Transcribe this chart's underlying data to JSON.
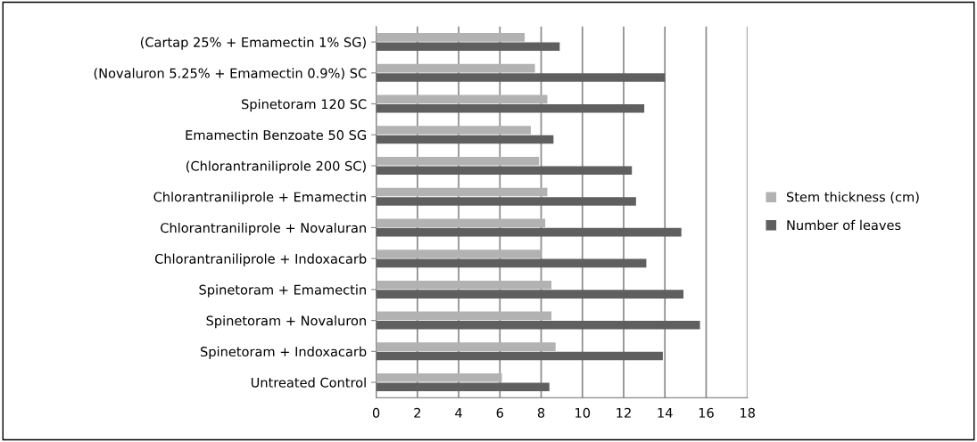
{
  "chart_data": {
    "type": "bar",
    "orientation": "horizontal",
    "categories": [
      "(Cartap 25% + Emamectin 1% SG)",
      "(Novaluron 5.25% + Emamectin 0.9%) SC",
      "Spinetoram 120 SC",
      "Emamectin Benzoate 50 SG",
      "(Chlorantraniliprole 200 SC)",
      "Chlorantraniliprole + Emamectin",
      "Chlorantraniliprole + Novaluran",
      "Chlorantraniliprole + Indoxacarb",
      "Spinetoram + Emamectin",
      "Spinetoram + Novaluron",
      "Spinetoram + Indoxacarb",
      "Untreated Control"
    ],
    "series": [
      {
        "name": "Stem thickness (cm)",
        "color": "#b2b2b2",
        "values": [
          7.2,
          7.7,
          8.3,
          7.5,
          7.9,
          8.3,
          8.2,
          8.0,
          8.5,
          8.5,
          8.7,
          6.1
        ]
      },
      {
        "name": "Number of leaves",
        "color": "#5f5f5f",
        "values": [
          8.9,
          14.0,
          13.0,
          8.6,
          12.4,
          12.6,
          14.8,
          13.1,
          14.9,
          15.7,
          13.9,
          8.4
        ]
      }
    ],
    "xlim": [
      0,
      18
    ],
    "xticks": [
      0,
      2,
      4,
      6,
      8,
      10,
      12,
      14,
      16,
      18
    ],
    "grid": "x",
    "legend": "right"
  }
}
